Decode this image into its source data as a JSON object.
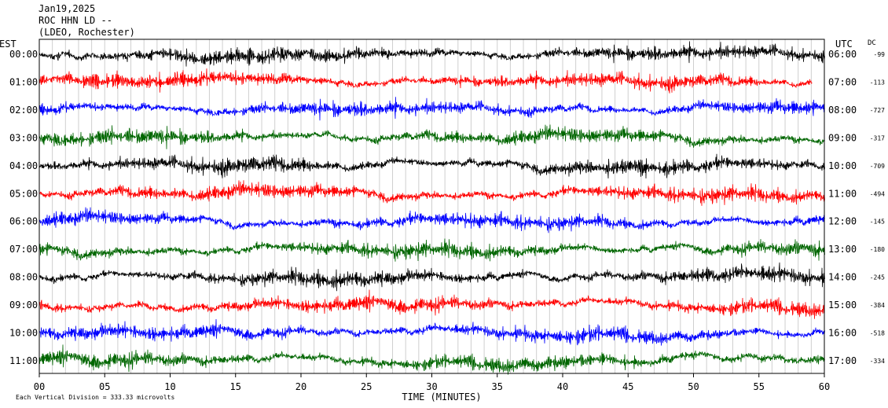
{
  "header": {
    "date": "Jan19,2025",
    "station": "ROC HHN LD --",
    "network": "(LDEO, Rochester)"
  },
  "chart_data": {
    "type": "line",
    "title": "Jan19,2025 ROC HHN LD -- (LDEO, Rochester)",
    "xlabel": "TIME (MINUTES)",
    "left_axis_title": "EST",
    "right_axis_title": "UTC",
    "dc_title": "DC",
    "xlim": [
      0,
      60
    ],
    "x_ticks": [
      "00",
      "05",
      "10",
      "15",
      "20",
      "25",
      "30",
      "35",
      "40",
      "45",
      "50",
      "55",
      "60"
    ],
    "grid": "vertical lines every minute",
    "scale_note": "Each Vertical Division = 333.33 microvolts",
    "series": [
      {
        "est": "00:00",
        "utc": "06:00",
        "dc": "-99",
        "color": "#000000"
      },
      {
        "est": "01:00",
        "utc": "07:00",
        "dc": "-113",
        "color": "#ff0000"
      },
      {
        "est": "02:00",
        "utc": "08:00",
        "dc": "-727",
        "color": "#0000ff"
      },
      {
        "est": "03:00",
        "utc": "09:00",
        "dc": "-317",
        "color": "#006600"
      },
      {
        "est": "04:00",
        "utc": "10:00",
        "dc": "-709",
        "color": "#000000"
      },
      {
        "est": "05:00",
        "utc": "11:00",
        "dc": "-494",
        "color": "#ff0000"
      },
      {
        "est": "06:00",
        "utc": "12:00",
        "dc": "-145",
        "color": "#0000ff"
      },
      {
        "est": "07:00",
        "utc": "13:00",
        "dc": "-180",
        "color": "#006600"
      },
      {
        "est": "08:00",
        "utc": "14:00",
        "dc": "-245",
        "color": "#000000"
      },
      {
        "est": "09:00",
        "utc": "15:00",
        "dc": "-384",
        "color": "#ff0000"
      },
      {
        "est": "10:00",
        "utc": "16:00",
        "dc": "-518",
        "color": "#0000ff"
      },
      {
        "est": "11:00",
        "utc": "17:00",
        "dc": "-334",
        "color": "#006600"
      }
    ]
  }
}
